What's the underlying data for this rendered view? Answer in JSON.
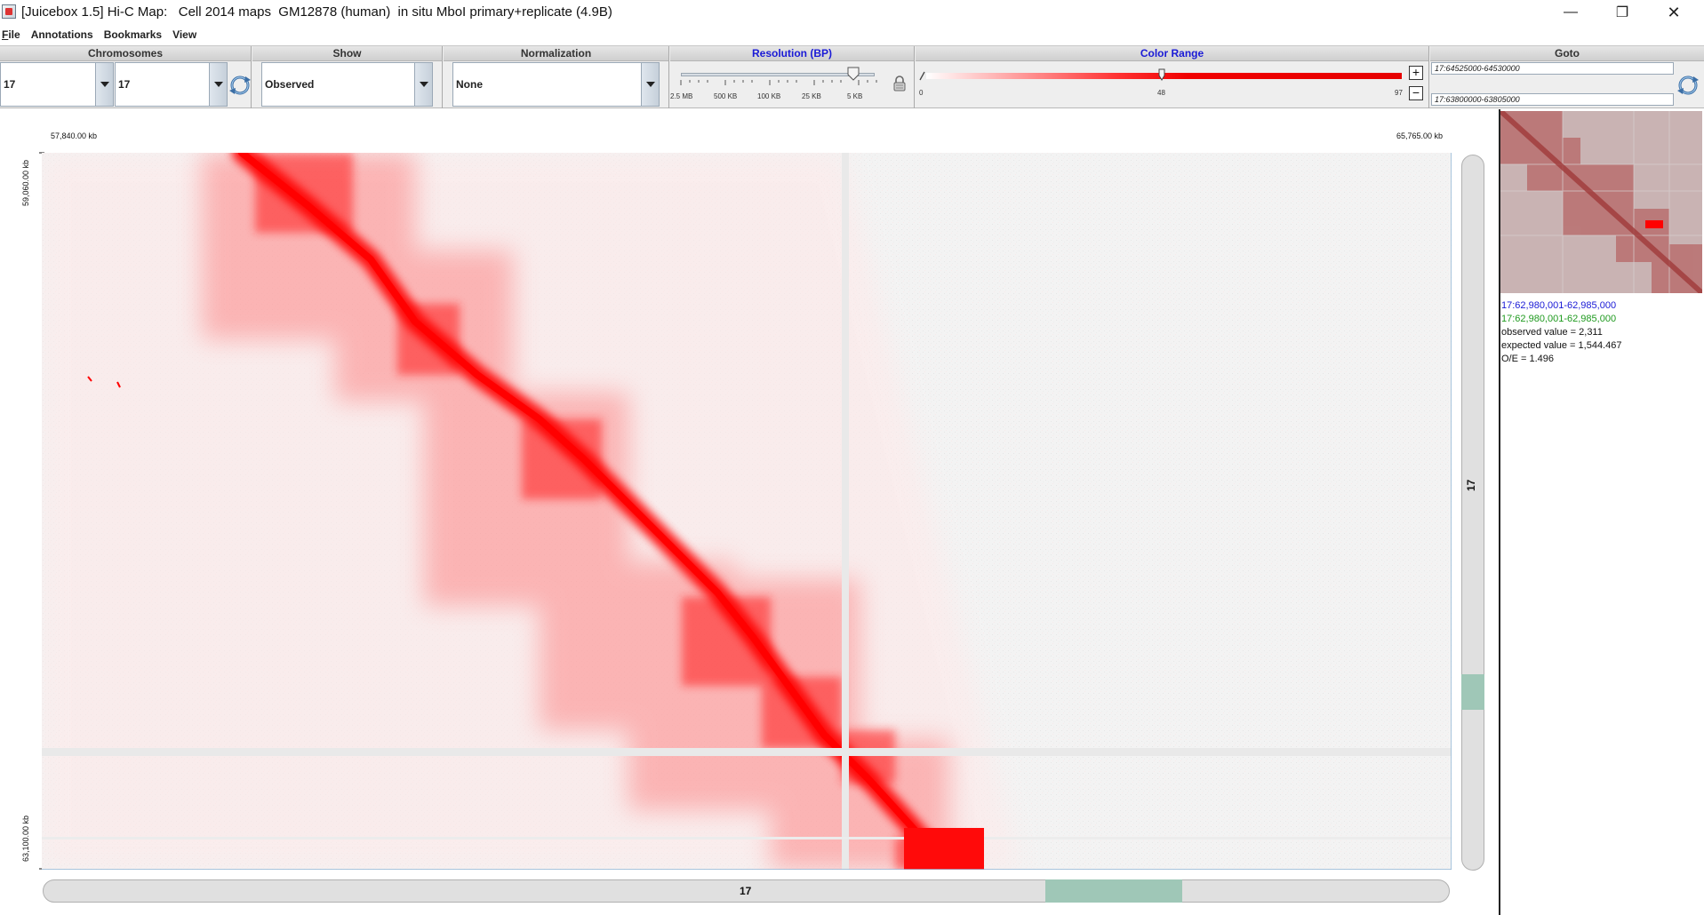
{
  "window": {
    "title": "[Juicebox 1.5] Hi-C Map:   Cell 2014 maps  GM12878 (human)  in situ MboI primary+replicate (4.9B)",
    "controls": {
      "minimize": "—",
      "maximize": "❐",
      "close": "✕"
    }
  },
  "menu": [
    "File",
    "Annotations",
    "Bookmarks",
    "View"
  ],
  "toolbar": {
    "chromosomes": {
      "header": "Chromosomes",
      "chrom1": "17",
      "chrom2": "17"
    },
    "show": {
      "header": "Show",
      "value": "Observed"
    },
    "normalization": {
      "header": "Normalization",
      "value": "None"
    },
    "resolution": {
      "header": "Resolution (BP)",
      "ticks": [
        "2.5 MB",
        "500 KB",
        "100 KB",
        "25 KB",
        "5 KB"
      ],
      "selected": "5 KB"
    },
    "color_range": {
      "header": "Color Range",
      "min_label": "0",
      "mid_label": "48",
      "max_label": "97",
      "current": 48
    },
    "goto": {
      "header": "Goto",
      "field1": "17:64525000-64530000",
      "field2": "17:63800000-63805000"
    }
  },
  "heatmap": {
    "x_start": "57,840.00 kb",
    "x_end": "65,765.00 kb",
    "y_start": "59,060.00 kb",
    "y_end": "63,100.00 kb",
    "x_chrom": "17",
    "y_chrom": "17",
    "colors": {
      "contact": "#ff0000",
      "background": "#f2f2f2",
      "scroll_thumb": "#9fc7b7"
    }
  },
  "info": {
    "x_coord": "17:62,980,001-62,985,000",
    "y_coord": "17:62,980,001-62,985,000",
    "observed": "observed value = 2,311",
    "expected": "expected value = 1,544.467",
    "oe": "O/E = 1.496"
  }
}
